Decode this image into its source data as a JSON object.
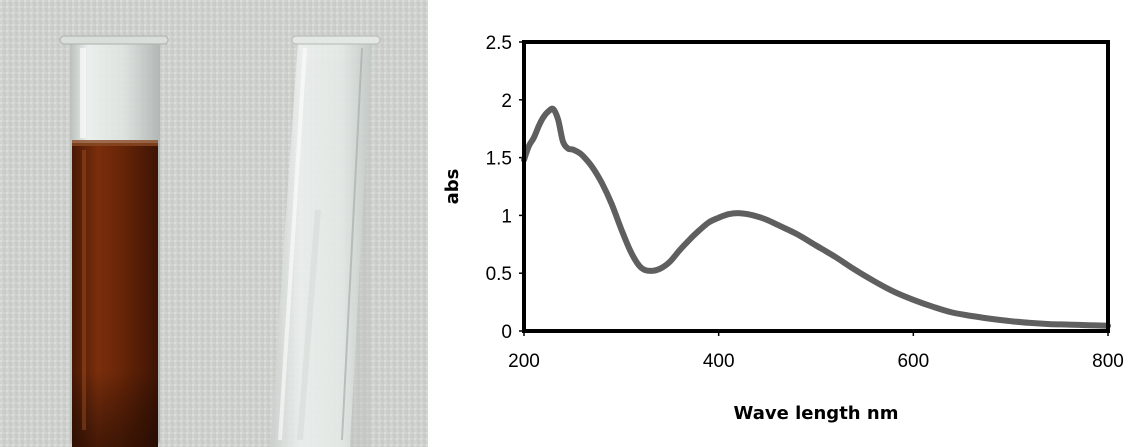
{
  "photo": {
    "subject": "two test tubes",
    "tube_left_color": "#6a2608",
    "tube_right_color": "#e6ece9"
  },
  "chart_data": {
    "type": "line",
    "title": "",
    "xlabel": "Wave length nm",
    "ylabel": "abs",
    "xlim": [
      200,
      800
    ],
    "ylim": [
      0,
      2.5
    ],
    "x_ticks": [
      200,
      400,
      600,
      800
    ],
    "y_ticks": [
      0,
      0.5,
      1,
      1.5,
      2,
      2.5
    ],
    "x_tick_labels": [
      "200",
      "400",
      "600",
      "800"
    ],
    "y_tick_labels": [
      "0",
      "0.5",
      "1",
      "1.5",
      "2",
      "2.5"
    ],
    "grid": false,
    "legend": "none",
    "series": [
      {
        "color": "#5f5f5f",
        "x": [
          200,
          205,
          210,
          215,
          220,
          225,
          230,
          235,
          240,
          245,
          250,
          255,
          260,
          270,
          280,
          290,
          300,
          310,
          320,
          330,
          340,
          350,
          360,
          370,
          380,
          390,
          400,
          410,
          420,
          430,
          440,
          450,
          460,
          480,
          500,
          520,
          540,
          560,
          580,
          600,
          620,
          640,
          660,
          680,
          700,
          720,
          740,
          760,
          780,
          800
        ],
        "y": [
          1.48,
          1.6,
          1.67,
          1.77,
          1.85,
          1.9,
          1.92,
          1.83,
          1.64,
          1.58,
          1.57,
          1.55,
          1.52,
          1.42,
          1.28,
          1.1,
          0.88,
          0.68,
          0.55,
          0.52,
          0.54,
          0.6,
          0.7,
          0.79,
          0.87,
          0.94,
          0.98,
          1.01,
          1.02,
          1.01,
          0.99,
          0.96,
          0.92,
          0.84,
          0.74,
          0.64,
          0.53,
          0.43,
          0.34,
          0.27,
          0.21,
          0.16,
          0.13,
          0.105,
          0.085,
          0.07,
          0.06,
          0.055,
          0.05,
          0.045
        ]
      }
    ]
  }
}
